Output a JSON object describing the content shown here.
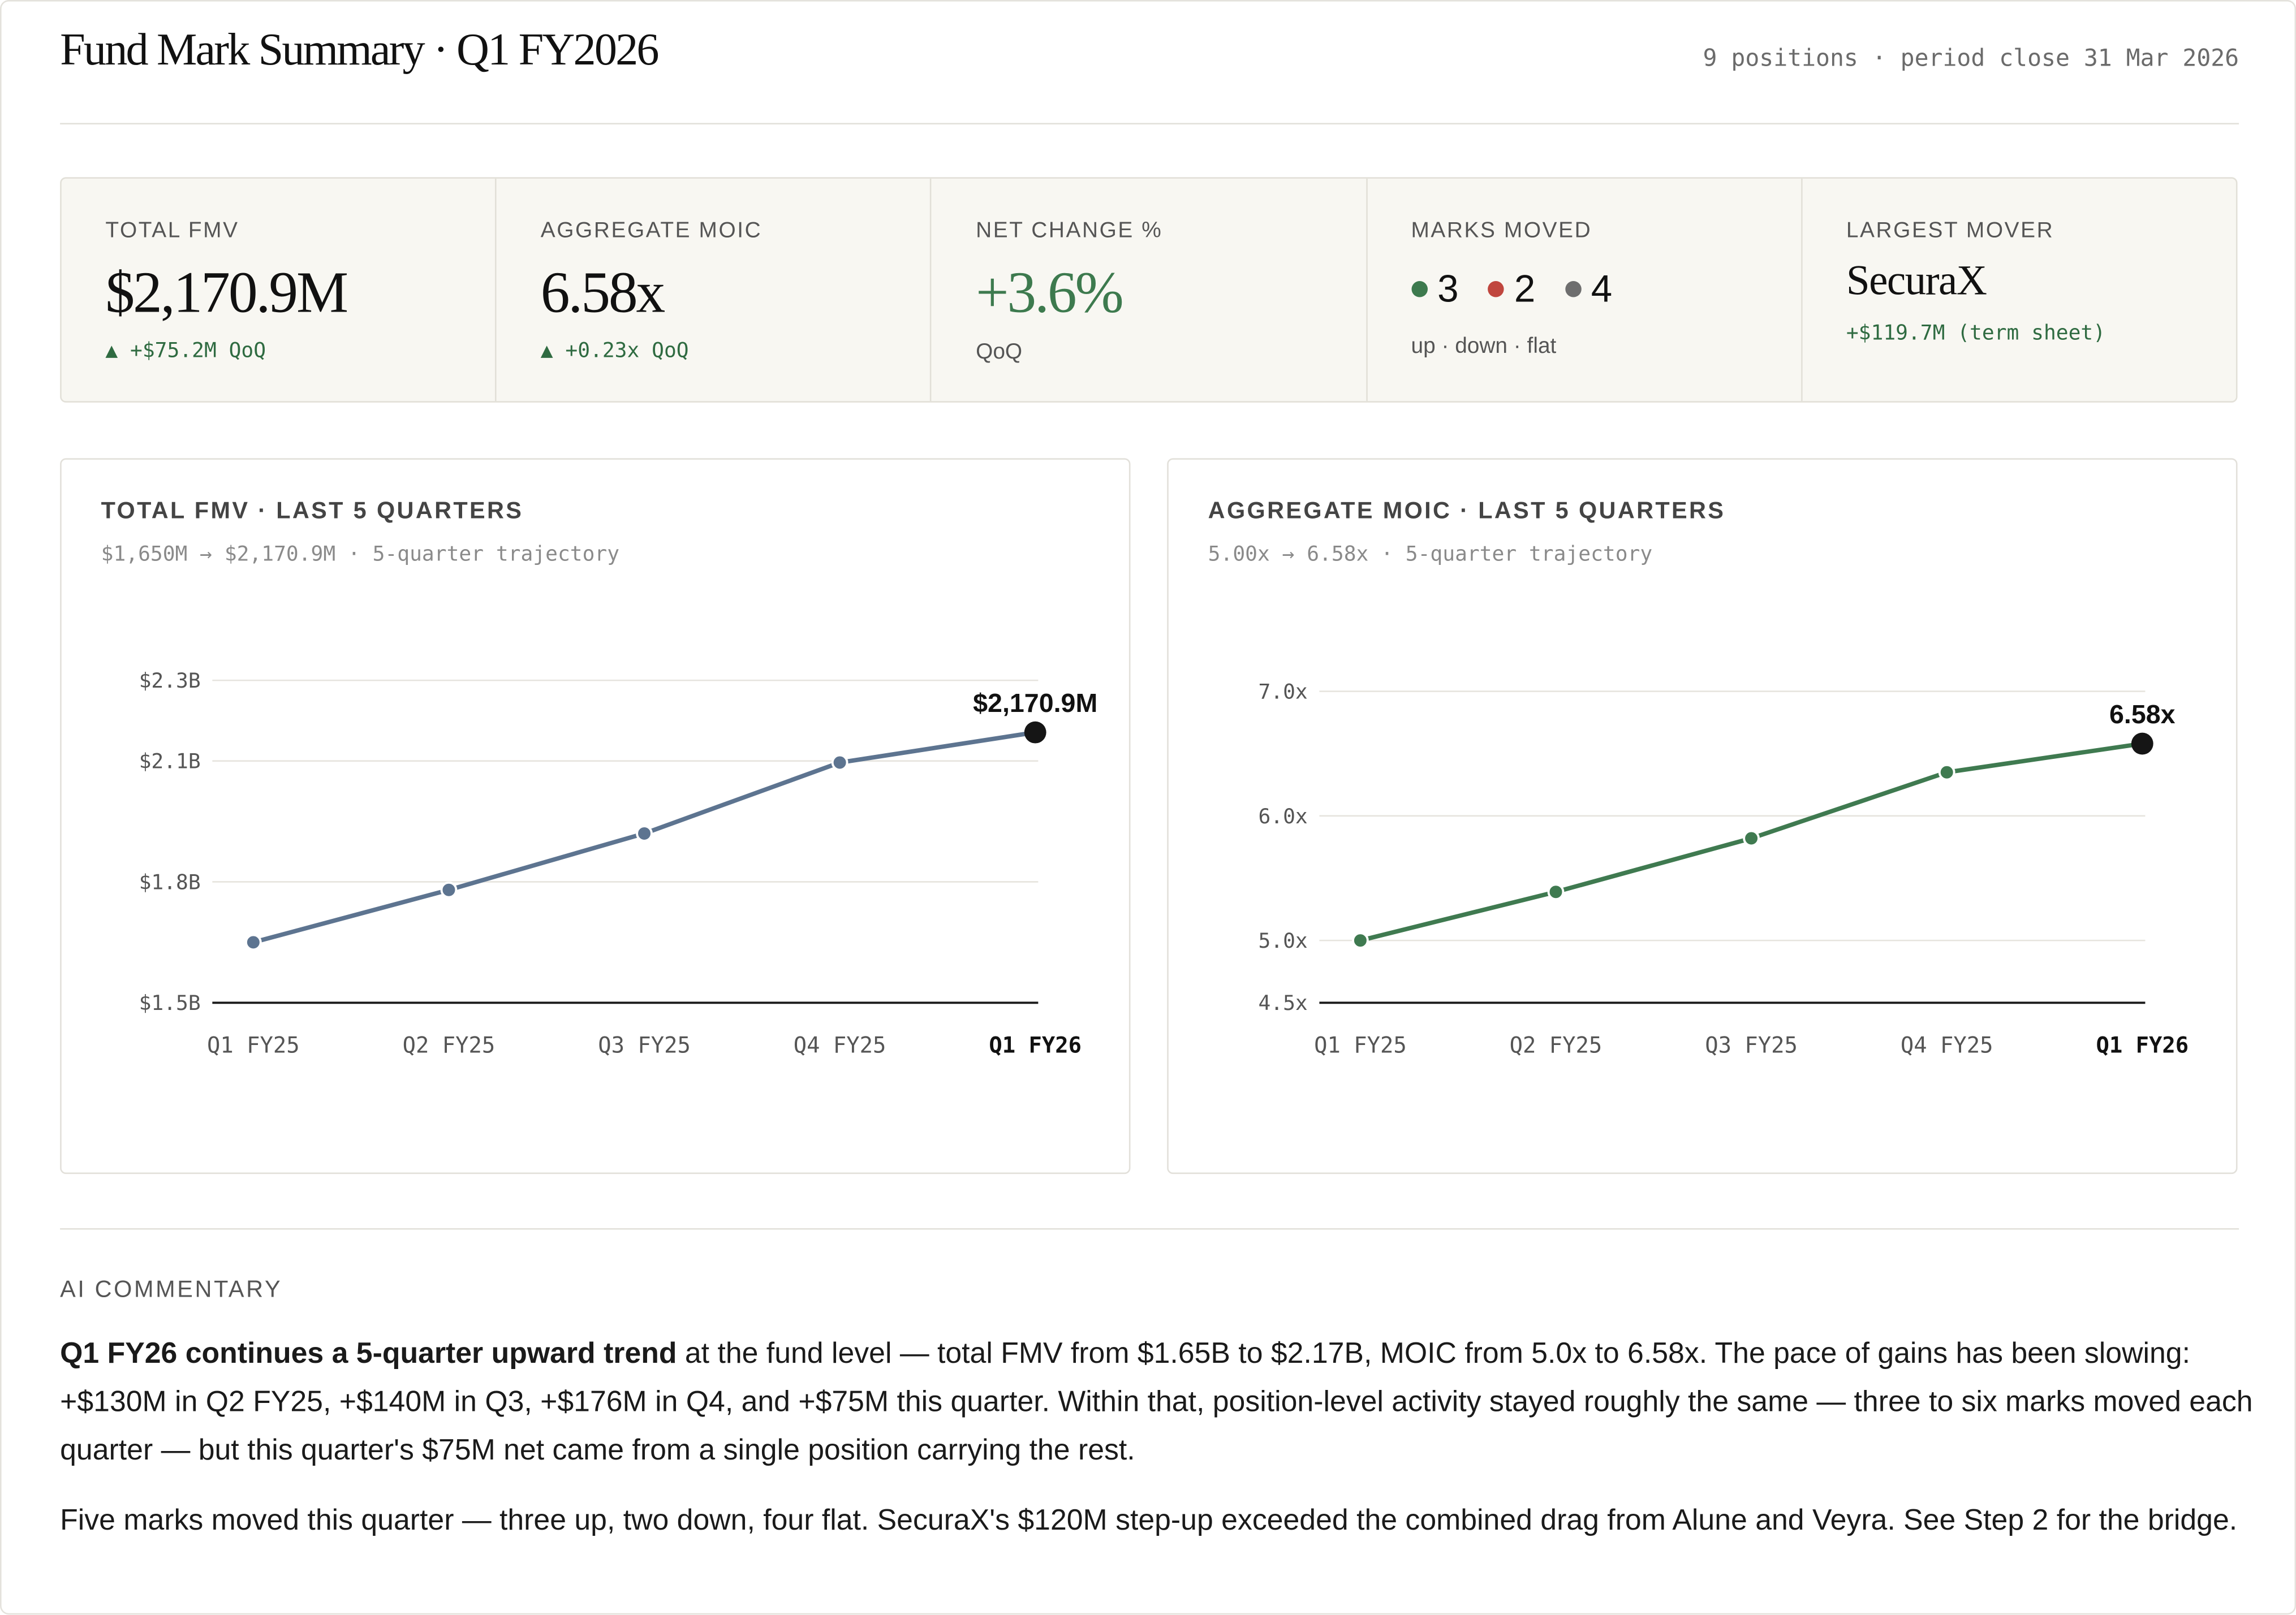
{
  "header": {
    "title": "Fund Mark Summary · Q1 FY2026",
    "meta": "9 positions · period close 31 Mar 2026"
  },
  "kpis": {
    "total_fmv": {
      "label": "TOTAL FMV",
      "value": "$2,170.9M",
      "sub": "▲ +$75.2M QoQ"
    },
    "aggregate_moic": {
      "label": "AGGREGATE MOIC",
      "value": "6.58x",
      "sub": "▲ +0.23x QoQ"
    },
    "net_change": {
      "label": "NET CHANGE %",
      "value": "+3.6%",
      "sub": "QoQ"
    },
    "marks_moved": {
      "label": "MARKS MOVED",
      "up": "3",
      "down": "2",
      "flat": "4",
      "sub": "up · down · flat",
      "colors": {
        "up": "#3d7a4e",
        "down": "#c0463e",
        "flat": "#6e6e6e"
      }
    },
    "largest_mover": {
      "label": "LARGEST MOVER",
      "value": "SecuraX",
      "sub": "+$119.7M (term sheet)"
    }
  },
  "chart_data": [
    {
      "type": "line",
      "title": "TOTAL FMV · LAST 5 QUARTERS",
      "subtitle": "$1,650M → $2,170.9M · 5-quarter trajectory",
      "categories": [
        "Q1 FY25",
        "Q2 FY25",
        "Q3 FY25",
        "Q4 FY25",
        "Q1 FY26"
      ],
      "values": [
        1650,
        1780,
        1920,
        2096,
        2170.9
      ],
      "ylim": [
        1500,
        2350
      ],
      "yticks": [
        {
          "value": 1500,
          "label": "$1.5B"
        },
        {
          "value": 1800,
          "label": "$1.8B"
        },
        {
          "value": 2100,
          "label": "$2.1B"
        },
        {
          "value": 2300,
          "label": "$2.3B"
        }
      ],
      "last_label": "$2,170.9M",
      "line_color": "#5d7490",
      "grid": true
    },
    {
      "type": "line",
      "title": "AGGREGATE MOIC · LAST 5 QUARTERS",
      "subtitle": "5.00x → 6.58x · 5-quarter trajectory",
      "categories": [
        "Q1 FY25",
        "Q2 FY25",
        "Q3 FY25",
        "Q4 FY25",
        "Q1 FY26"
      ],
      "values": [
        5.0,
        5.39,
        5.82,
        6.35,
        6.58
      ],
      "ylim": [
        4.5,
        7.25
      ],
      "yticks": [
        {
          "value": 4.5,
          "label": "4.5x"
        },
        {
          "value": 5.0,
          "label": "5.0x"
        },
        {
          "value": 6.0,
          "label": "6.0x"
        },
        {
          "value": 7.0,
          "label": "7.0x"
        }
      ],
      "last_label": "6.58x",
      "line_color": "#3f7a50",
      "grid": true
    }
  ],
  "commentary": {
    "label": "AI COMMENTARY",
    "p1_bold": "Q1 FY26 continues a 5-quarter upward trend",
    "p1_rest": " at the fund level — total FMV from $1.65B to $2.17B, MOIC from 5.0x to 6.58x. The pace of gains has been slowing: +$130M in Q2 FY25, +$140M in Q3, +$176M in Q4, and +$75M this quarter. Within that, position-level activity stayed roughly the same — three to six marks moved each quarter — but this quarter's $75M net came from a single position carrying the rest.",
    "p2": "Five marks moved this quarter — three up, two down, four flat. SecuraX's $120M step-up exceeded the combined drag from Alune and Veyra. See Step 2 for the bridge."
  }
}
